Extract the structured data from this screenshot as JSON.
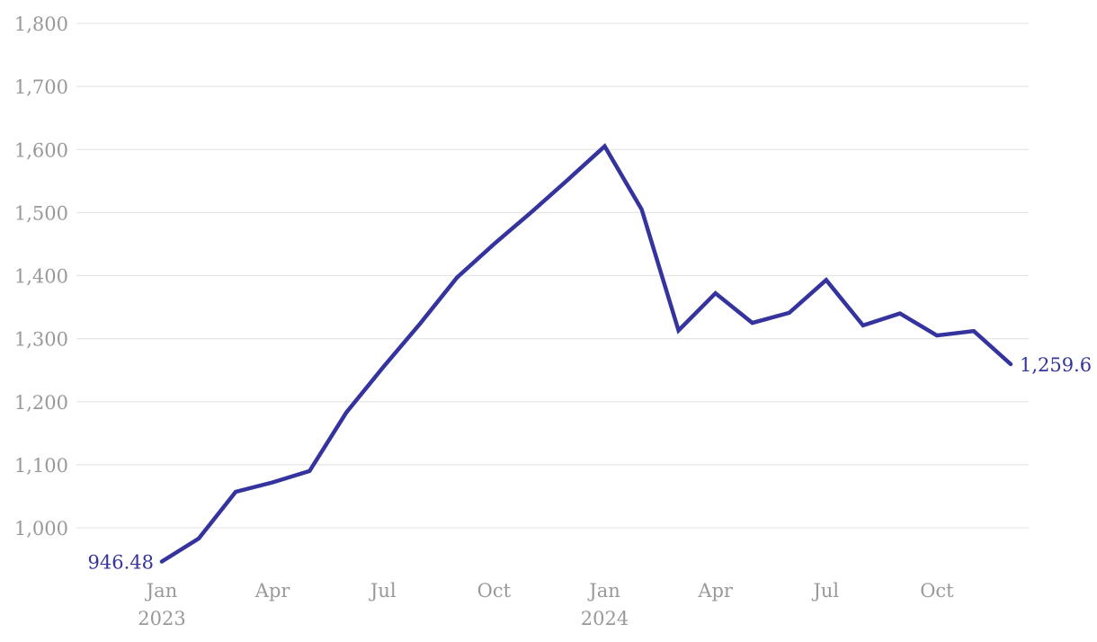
{
  "chart_data": {
    "type": "line",
    "title": "",
    "xlabel": "",
    "ylabel": "",
    "x": [
      "Jan 2023",
      "Feb 2023",
      "Mar 2023",
      "Apr 2023",
      "May 2023",
      "Jun 2023",
      "Jul 2023",
      "Aug 2023",
      "Sep 2023",
      "Oct 2023",
      "Nov 2023",
      "Dec 2023",
      "Jan 2024",
      "Feb 2024",
      "Mar 2024",
      "Apr 2024",
      "May 2024",
      "Jun 2024",
      "Jul 2024",
      "Aug 2024",
      "Sep 2024",
      "Oct 2024",
      "Nov 2024",
      "Dec 2024"
    ],
    "values": [
      946.48,
      983,
      1057,
      1072,
      1090,
      1183,
      1255,
      1324,
      1397,
      1450,
      1500,
      1552,
      1605,
      1505,
      1313,
      1372,
      1325,
      1341,
      1393,
      1321,
      1340,
      1305,
      1312,
      1259.6
    ],
    "start_point_label": "946.48",
    "end_point_label": "1,259.6",
    "y_ticks": [
      1000,
      1100,
      1200,
      1300,
      1400,
      1500,
      1600,
      1700,
      1800
    ],
    "y_tick_labels": [
      "1,000",
      "1,100",
      "1,200",
      "1,300",
      "1,400",
      "1,500",
      "1,600",
      "1,700",
      "1,800"
    ],
    "x_tick_indices": [
      0,
      3,
      6,
      9,
      12,
      15,
      18,
      21
    ],
    "x_tick_labels": [
      "Jan",
      "Apr",
      "Jul",
      "Oct",
      "Jan",
      "Apr",
      "Jul",
      "Oct"
    ],
    "x_tick_years": {
      "0": "2023",
      "12": "2024"
    },
    "ylim": [
      1000,
      1800
    ],
    "grid": true,
    "legend": "none",
    "colors": {
      "line": "#35339d",
      "value_label": "#35339d",
      "axis_text": "#999999",
      "gridline": "#e6e6e6",
      "background": "#ffffff"
    }
  }
}
